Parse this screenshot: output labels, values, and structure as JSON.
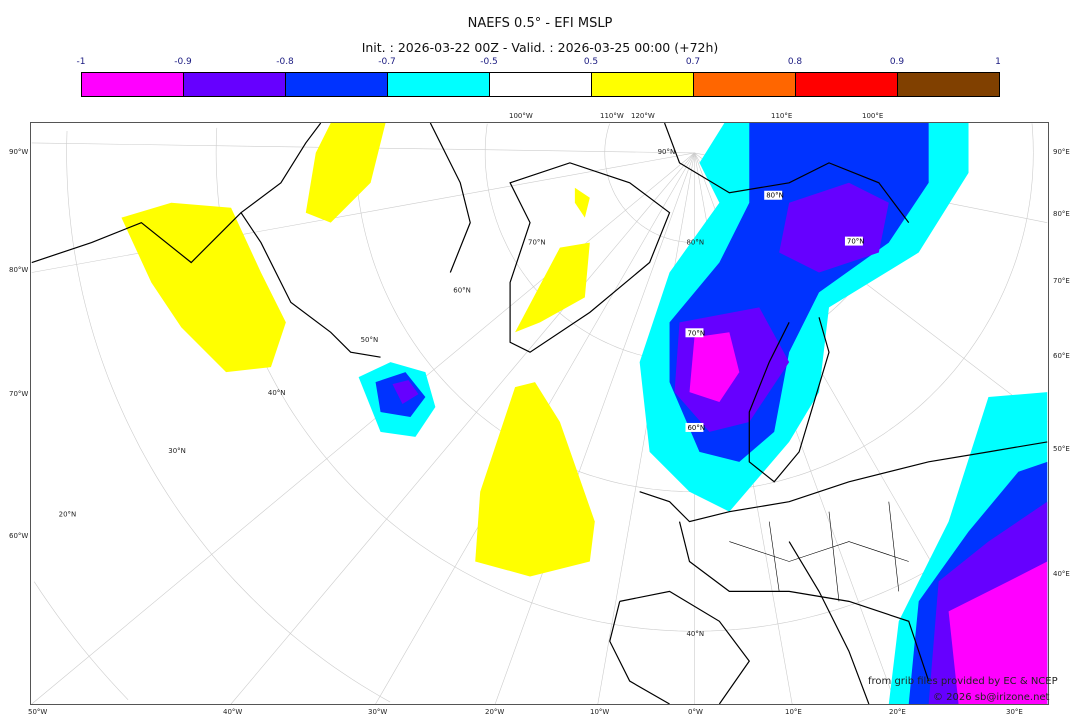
{
  "title": "NAEFS 0.5° - EFI MSLP",
  "subtitle": "Init. : 2026-03-22 00Z - Valid. : 2026-03-25 00:00 (+72h)",
  "colorbar": {
    "ticks": [
      "-1",
      "-0.9",
      "-0.8",
      "-0.7",
      "-0.5",
      "0.5",
      "0.7",
      "0.8",
      "0.9",
      "1"
    ],
    "colors": [
      "#ff00ff",
      "#6600ff",
      "#0033ff",
      "#00ffff",
      "#ffffff",
      "#ffff00",
      "#ff6600",
      "#ff0000",
      "#804000"
    ]
  },
  "axes": {
    "left": [
      "90°W",
      "80°W",
      "70°W",
      "60°W"
    ],
    "right": [
      "90°E",
      "80°E",
      "70°E",
      "60°E",
      "50°E",
      "40°E"
    ],
    "bottom": [
      "50°W",
      "40°W",
      "30°W",
      "20°W",
      "10°W",
      "0°W",
      "10°E",
      "20°E",
      "30°E"
    ],
    "top": [
      "100°W",
      "110°W",
      "120°W",
      "110°E",
      "100°E"
    ],
    "lat_labels": [
      "90°N",
      "80°N",
      "70°N",
      "60°N",
      "50°N",
      "40°N",
      "30°N",
      "20°N"
    ],
    "map_boxed_labels": [
      "80°N",
      "70°N",
      "70°N",
      "60°N"
    ]
  },
  "credits": {
    "line1": "from grib files provided by EC & NCEP",
    "line2": "© 2026 sb@irizone.net"
  }
}
